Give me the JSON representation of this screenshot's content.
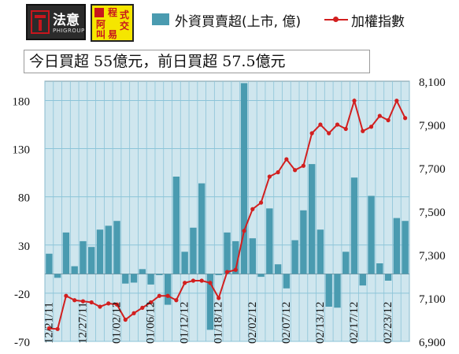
{
  "headline": "今日買超 55億元，前日買超 57.5億元",
  "logos": {
    "brand1": "法意",
    "brand1_sub": "PHIGROUP",
    "brand2_chars": [
      "程",
      "式",
      "阿",
      "交",
      "叫",
      "易"
    ]
  },
  "legend": {
    "bar_label": "外資買賣超(上市, 億)",
    "line_label": "加權指數"
  },
  "colors": {
    "bar": "#4a9bb0",
    "line": "#d21f1f",
    "plot_bg": "#cfe6ee",
    "grid": "#8cc4d8"
  },
  "chart_data": {
    "type": "bar",
    "title": "",
    "y_left": {
      "ticks": [
        -70,
        -20,
        30,
        80,
        130,
        180
      ],
      "range": [
        -70,
        200
      ]
    },
    "y_right": {
      "ticks": [
        "6,900",
        "7,100",
        "7,300",
        "7,500",
        "7,700",
        "7,900",
        "8,100"
      ],
      "range": [
        6900,
        8100
      ]
    },
    "x_labels": [
      "12/21/11",
      "12/27/11",
      "01/02/12",
      "01/06/12",
      "01/12/12",
      "01/18/12",
      "02/02/12",
      "02/07/12",
      "02/13/12",
      "02/17/12",
      "02/23/12"
    ],
    "grid": true,
    "series": [
      {
        "name": "外資買賣超(上市, 億)",
        "type": "bar",
        "axis": "left",
        "values": [
          21,
          -4,
          43,
          8,
          34,
          28,
          46,
          50,
          55,
          -10,
          -9,
          5,
          -11,
          0,
          -32,
          101,
          23,
          48,
          94,
          -58,
          0,
          43,
          34,
          198,
          37,
          -3,
          68,
          10,
          -15,
          35,
          66,
          114,
          46,
          -34,
          -35,
          23,
          100,
          -12,
          81,
          11,
          -7,
          58,
          55
        ]
      },
      {
        "name": "加權指數",
        "type": "line",
        "axis": "right",
        "values": [
          6960,
          6957,
          7110,
          7090,
          7085,
          7080,
          7060,
          7075,
          7070,
          7000,
          7030,
          7055,
          7080,
          7110,
          7110,
          7090,
          7170,
          7180,
          7180,
          7170,
          7100,
          7220,
          7230,
          7410,
          7510,
          7540,
          7660,
          7680,
          7740,
          7690,
          7710,
          7860,
          7900,
          7860,
          7900,
          7880,
          8010,
          7870,
          7890,
          7940,
          7920,
          8010,
          7930
        ]
      }
    ]
  }
}
